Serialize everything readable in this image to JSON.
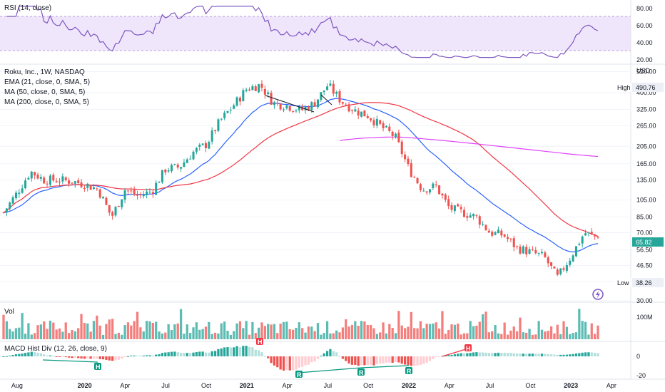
{
  "colors": {
    "up": "#26a69a",
    "down": "#ef5350",
    "ema": "#2962ff",
    "ma50": "#f23645",
    "ma200": "#e040fb",
    "rsi": "#7e57c2",
    "rsi_band": "#f0e6fb",
    "grid": "#f0f3fa",
    "hist_up": "#26a69a",
    "hist_down": "#ef5350",
    "hist_up_light": "#b2dfdb",
    "hist_down_light": "#ffcdd2",
    "div_bull": "#089981",
    "div_bear": "#f23645"
  },
  "legend": {
    "title": "Roku, Inc., 1W, NASDAQ",
    "ema": "EMA (21, close, 0, SMA, 5)",
    "ma50": "MA (50, close, 0, SMA, 5)",
    "ma200": "MA (200, close, 0, SMA, 5)"
  },
  "rsi_panel": {
    "title": "RSI (14, close)",
    "ticks": [
      "80.00",
      "60.00",
      "40.00",
      "20.00"
    ]
  },
  "price_panel": {
    "currency": "USD",
    "ticks": [
      "520.00",
      "400.00",
      "325.00",
      "265.00",
      "205.00",
      "165.00",
      "135.00",
      "105.00",
      "85.00",
      "70.00",
      "56.50",
      "46.50",
      "38.26",
      "30.00"
    ],
    "high_label": "High",
    "high_value": "490.76",
    "low_label": "Low",
    "low_value": "38.26",
    "last_value": "65.82"
  },
  "vol_panel": {
    "title": "Vol",
    "tick": "100M"
  },
  "macd_panel": {
    "title": "MACD Hist Div (12, 26, close, 9)",
    "ticks": [
      "0",
      "-20"
    ],
    "markers": [
      "H",
      "H",
      "R",
      "R",
      "R",
      "H"
    ]
  },
  "x_axis": {
    "labels": [
      "Aug",
      "2020",
      "Apr",
      "Jul",
      "Oct",
      "2021",
      "Apr",
      "Jul",
      "Oct",
      "2022",
      "Apr",
      "Jul",
      "Oct",
      "2023",
      "Apr"
    ]
  },
  "chart_data": {
    "type": "candlestick",
    "title": "Roku, Inc., 1W, NASDAQ",
    "interval": "1W",
    "x_range": [
      "2019-07",
      "2023-03"
    ],
    "price_scale": "log",
    "ylim": [
      30,
      560
    ],
    "anchors": [
      {
        "date": "2019-07",
        "close": 90
      },
      {
        "date": "2019-08",
        "close": 115
      },
      {
        "date": "2019-09",
        "close": 150
      },
      {
        "date": "2019-10",
        "close": 135
      },
      {
        "date": "2019-11",
        "close": 135
      },
      {
        "date": "2019-12",
        "close": 133
      },
      {
        "date": "2020-01",
        "close": 128
      },
      {
        "date": "2020-02",
        "close": 120
      },
      {
        "date": "2020-03",
        "close": 85
      },
      {
        "date": "2020-04",
        "close": 120
      },
      {
        "date": "2020-05",
        "close": 110
      },
      {
        "date": "2020-06",
        "close": 118
      },
      {
        "date": "2020-07",
        "close": 155
      },
      {
        "date": "2020-08",
        "close": 158
      },
      {
        "date": "2020-09",
        "close": 190
      },
      {
        "date": "2020-10",
        "close": 210
      },
      {
        "date": "2020-11",
        "close": 280
      },
      {
        "date": "2020-12",
        "close": 340
      },
      {
        "date": "2021-01",
        "close": 420
      },
      {
        "date": "2021-02",
        "close": 440
      },
      {
        "date": "2021-03",
        "close": 350
      },
      {
        "date": "2021-04",
        "close": 340
      },
      {
        "date": "2021-05",
        "close": 320
      },
      {
        "date": "2021-06",
        "close": 350
      },
      {
        "date": "2021-07",
        "close": 440
      },
      {
        "date": "2021-08",
        "close": 360
      },
      {
        "date": "2021-09",
        "close": 320
      },
      {
        "date": "2021-10",
        "close": 300
      },
      {
        "date": "2021-11",
        "close": 260
      },
      {
        "date": "2021-12",
        "close": 230
      },
      {
        "date": "2022-01",
        "close": 155
      },
      {
        "date": "2022-02",
        "close": 120
      },
      {
        "date": "2022-03",
        "close": 125
      },
      {
        "date": "2022-04",
        "close": 95
      },
      {
        "date": "2022-05",
        "close": 90
      },
      {
        "date": "2022-06",
        "close": 85
      },
      {
        "date": "2022-07",
        "close": 70
      },
      {
        "date": "2022-08",
        "close": 68
      },
      {
        "date": "2022-09",
        "close": 58
      },
      {
        "date": "2022-10",
        "close": 55
      },
      {
        "date": "2022-11",
        "close": 52
      },
      {
        "date": "2022-12",
        "close": 40
      },
      {
        "date": "2023-01",
        "close": 52
      },
      {
        "date": "2023-02",
        "close": 70
      },
      {
        "date": "2023-03",
        "close": 65.82
      }
    ],
    "high": 490.76,
    "low": 38.26,
    "last": 65.82,
    "rsi_range": [
      20,
      80
    ],
    "rsi_band": [
      30,
      70
    ],
    "volume_max_label": "100M",
    "indicators": [
      "EMA 21",
      "MA 50",
      "MA 200",
      "RSI 14",
      "MACD Hist Div (12, 26, 9)"
    ]
  }
}
